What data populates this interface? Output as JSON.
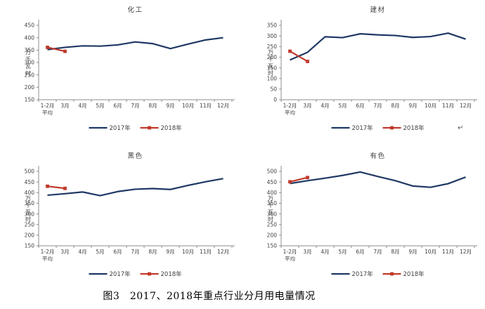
{
  "page": {
    "caption": "图3　2017、2018年重点行业分月用电量情况",
    "paragraph_mark": "↵",
    "background": "#FFFFFF"
  },
  "colors": {
    "series_2017": "#1F3864",
    "series_2018": "#C0392B",
    "axis": "#8C8C8C",
    "tick_text": "#3F3F3F",
    "title_text": "#404040"
  },
  "chart_data": [
    {
      "type": "line",
      "title": "化工",
      "ylabel": "万千瓦时",
      "categories": [
        "1-2月\n平均",
        "3月",
        "4月",
        "5月",
        "6月",
        "7月",
        "8月",
        "9月",
        "10月",
        "11月",
        "12月"
      ],
      "ylim": [
        150,
        450
      ],
      "ytick_step": 50,
      "grid": false,
      "legend_position": "bottom",
      "series": [
        {
          "name": "2017年",
          "color": "#1F3864",
          "marker": "none",
          "values": [
            352,
            361,
            367,
            366,
            371,
            383,
            376,
            356,
            374,
            391,
            400
          ]
        },
        {
          "name": "2018年",
          "color": "#C0392B",
          "marker": "square",
          "values": [
            361,
            345
          ]
        }
      ]
    },
    {
      "type": "line",
      "title": "建材",
      "ylabel": "万千瓦时",
      "categories": [
        "1-2月\n平均",
        "3月",
        "4月",
        "5月",
        "6月",
        "7月",
        "8月",
        "9月",
        "10月",
        "11月",
        "12月"
      ],
      "ylim": [
        0,
        350
      ],
      "ytick_step": 50,
      "grid": false,
      "legend_position": "bottom",
      "series": [
        {
          "name": "2017年",
          "color": "#1F3864",
          "marker": "none",
          "values": [
            187,
            223,
            296,
            292,
            310,
            305,
            302,
            293,
            297,
            313,
            285
          ]
        },
        {
          "name": "2018年",
          "color": "#C0392B",
          "marker": "square",
          "values": [
            228,
            180
          ]
        }
      ]
    },
    {
      "type": "line",
      "title": "黑色",
      "ylabel": "万千瓦时",
      "categories": [
        "1-2月\n平均",
        "3月",
        "4月",
        "5月",
        "6月",
        "7月",
        "8月",
        "9月",
        "10月",
        "11月",
        "12月"
      ],
      "ylim": [
        150,
        500
      ],
      "ytick_step": 50,
      "grid": false,
      "legend_position": "bottom",
      "series": [
        {
          "name": "2017年",
          "color": "#1F3864",
          "marker": "none",
          "values": [
            388,
            395,
            403,
            386,
            405,
            416,
            419,
            415,
            434,
            451,
            466
          ]
        },
        {
          "name": "2018年",
          "color": "#C0392B",
          "marker": "square",
          "values": [
            430,
            420
          ]
        }
      ]
    },
    {
      "type": "line",
      "title": "有色",
      "ylabel": "万千瓦时",
      "categories": [
        "1-2月\n平均",
        "3月",
        "4月",
        "5月",
        "6月",
        "7月",
        "8月",
        "9月",
        "10月",
        "11月",
        "12月"
      ],
      "ylim": [
        150,
        500
      ],
      "ytick_step": 50,
      "grid": false,
      "legend_position": "bottom",
      "series": [
        {
          "name": "2017年",
          "color": "#1F3864",
          "marker": "none",
          "values": [
            443,
            456,
            468,
            481,
            497,
            476,
            456,
            431,
            425,
            442,
            473
          ]
        },
        {
          "name": "2018年",
          "color": "#C0392B",
          "marker": "square",
          "values": [
            451,
            471
          ]
        }
      ]
    }
  ]
}
